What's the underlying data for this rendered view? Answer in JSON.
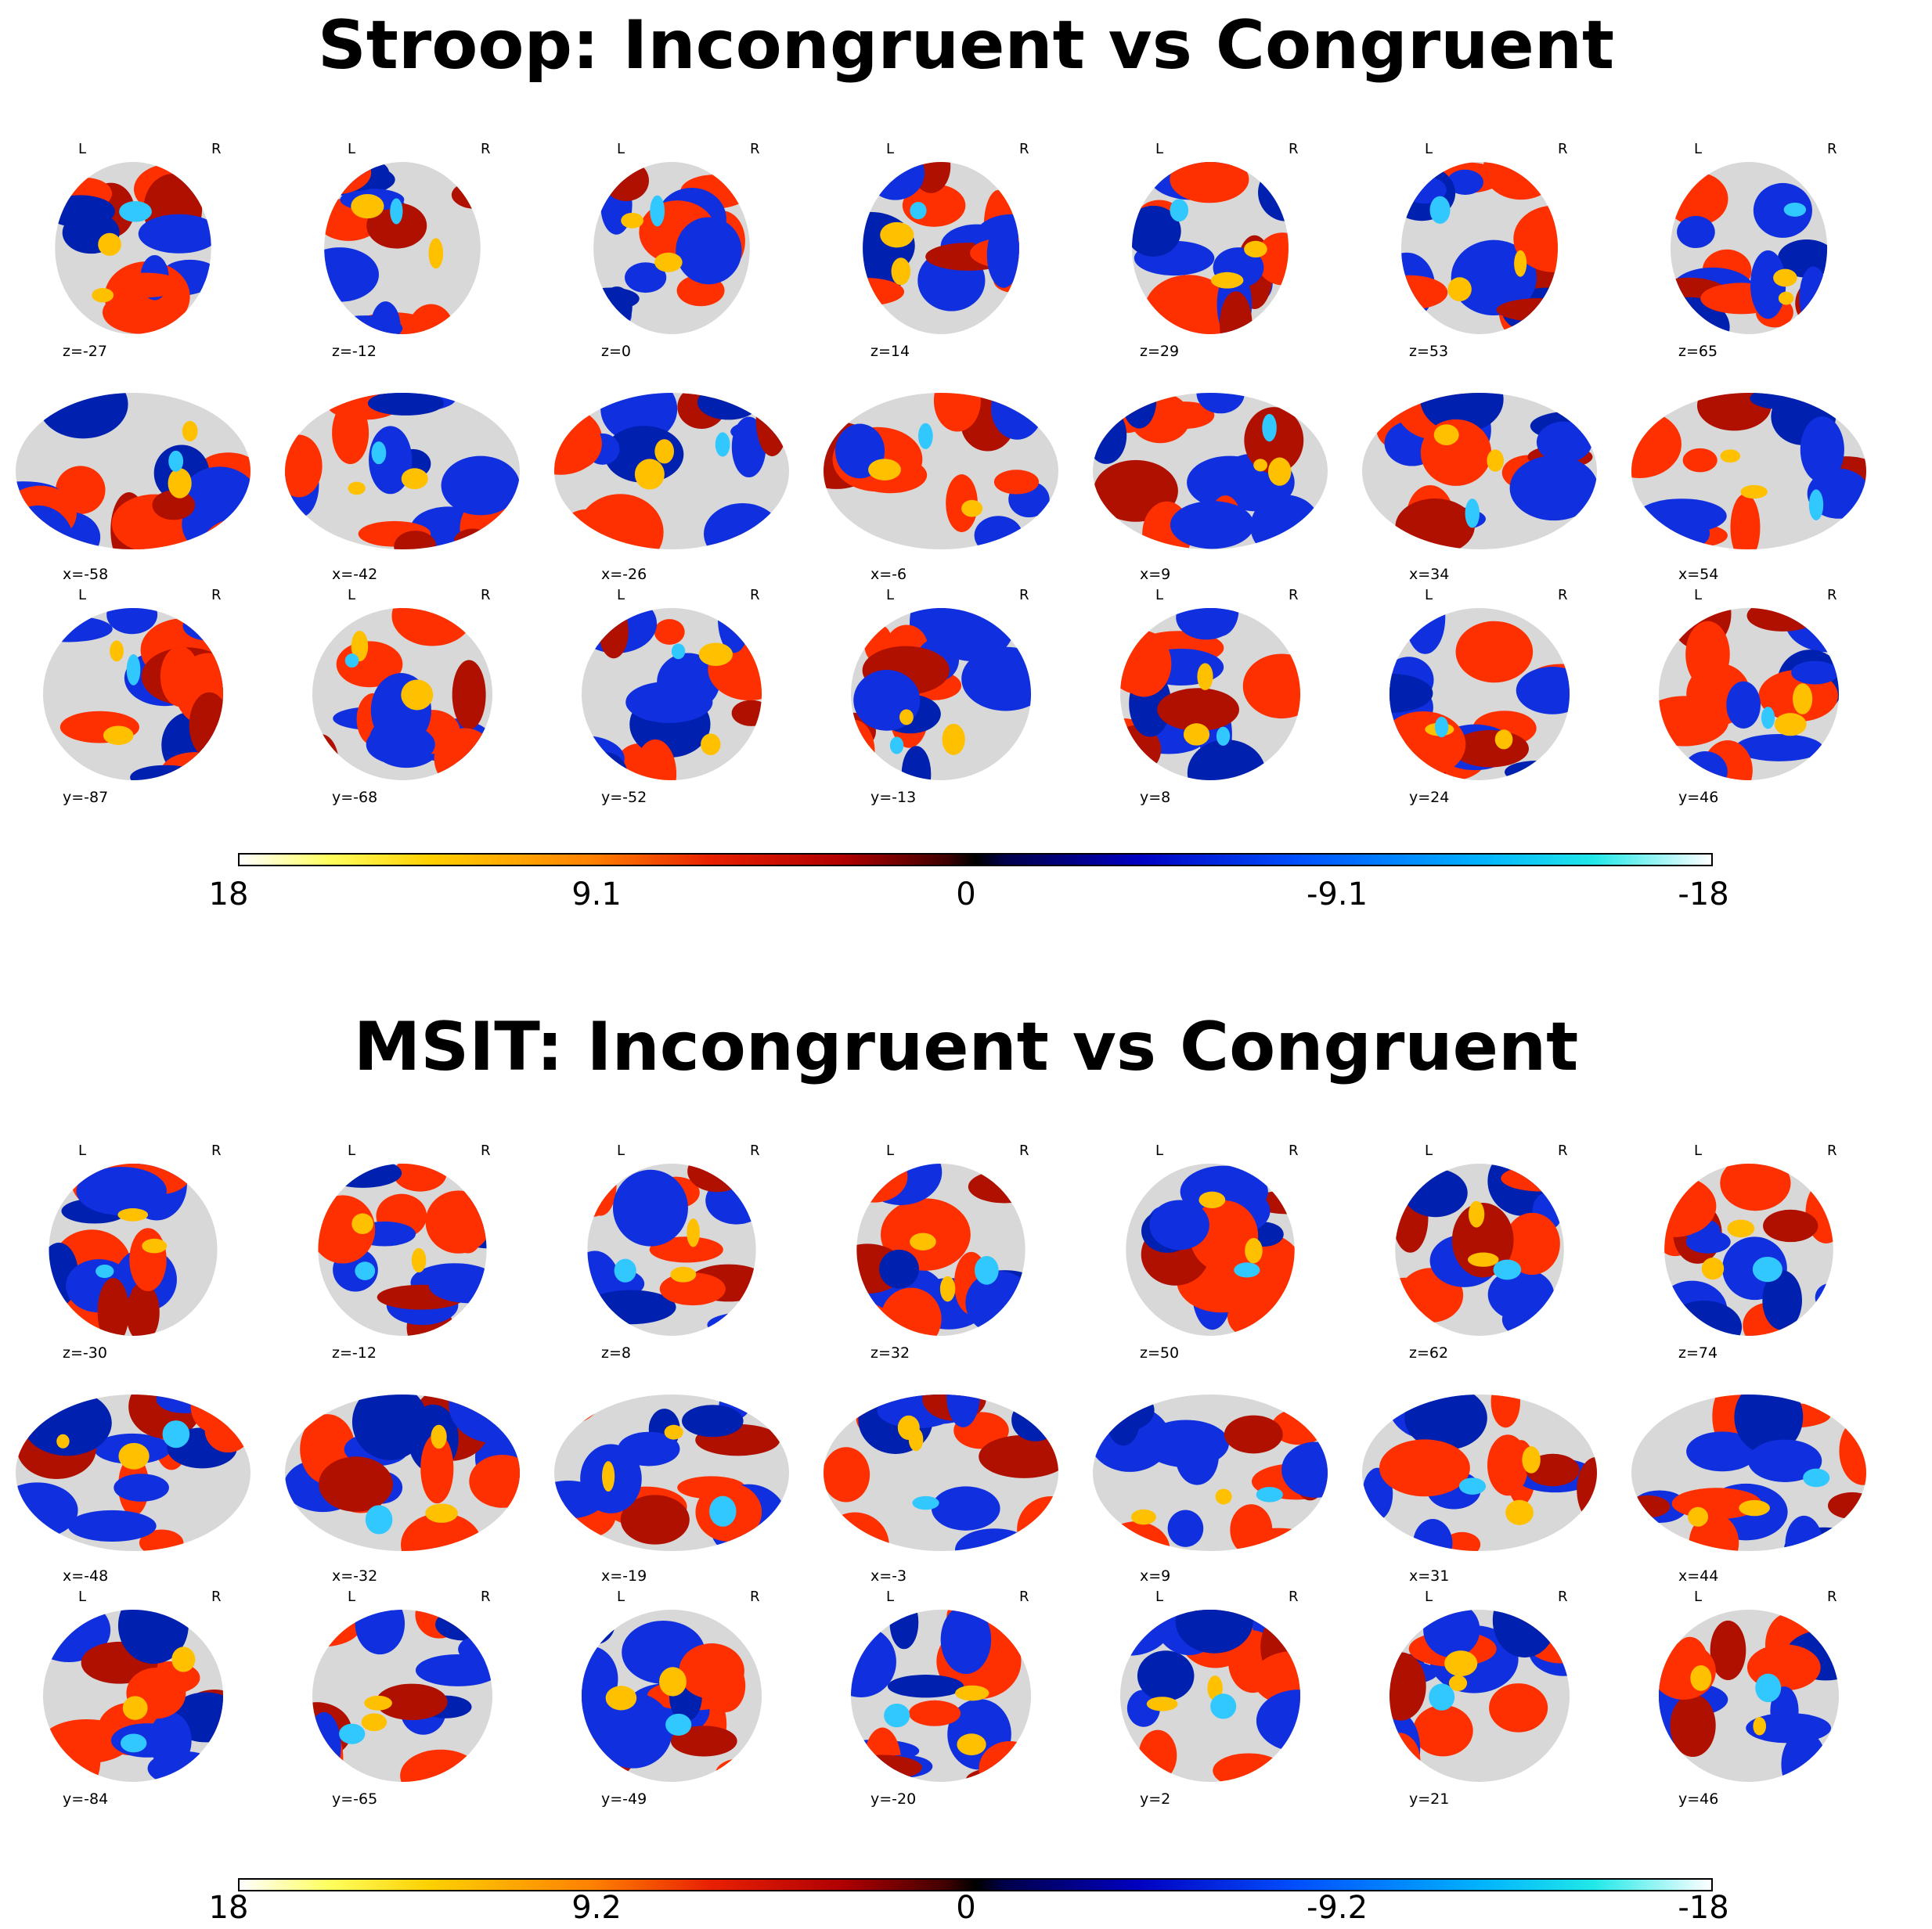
{
  "panels": [
    {
      "title": "Stroop: Incongruent vs Congruent",
      "rows": [
        {
          "view": "axial",
          "coords": [
            "z=-27",
            "z=-12",
            "z=0",
            "z=14",
            "z=29",
            "z=53",
            "z=65"
          ]
        },
        {
          "view": "sagittal",
          "coords": [
            "x=-58",
            "x=-42",
            "x=-26",
            "x=-6",
            "x=9",
            "x=34",
            "x=54"
          ]
        },
        {
          "view": "coronal",
          "coords": [
            "y=-87",
            "y=-68",
            "y=-52",
            "y=-13",
            "y=8",
            "y=24",
            "y=46"
          ]
        }
      ],
      "colorbar": {
        "ticks": [
          "18",
          "9.1",
          "0",
          "-9.1",
          "-18"
        ]
      }
    },
    {
      "title": "MSIT: Incongruent vs Congruent",
      "rows": [
        {
          "view": "axial",
          "coords": [
            "z=-30",
            "z=-12",
            "z=8",
            "z=32",
            "z=50",
            "z=62",
            "z=74"
          ]
        },
        {
          "view": "sagittal",
          "coords": [
            "x=-48",
            "x=-32",
            "x=-19",
            "x=-3",
            "x=9",
            "x=31",
            "x=44"
          ]
        },
        {
          "view": "coronal",
          "coords": [
            "y=-84",
            "y=-65",
            "y=-49",
            "y=-20",
            "y=2",
            "y=21",
            "y=46"
          ]
        }
      ],
      "colorbar": {
        "ticks": [
          "18",
          "9.2",
          "0",
          "-9.2",
          "-18"
        ]
      }
    }
  ],
  "orientation_labels": {
    "left": "L",
    "right": "R"
  },
  "colormap": "cold_hot",
  "colors": {
    "hot": "#ff3000",
    "hot_core": "#ffc000",
    "cold": "#1030e0",
    "cold_core": "#30c8ff",
    "background_brain": "#d8d8d8"
  }
}
